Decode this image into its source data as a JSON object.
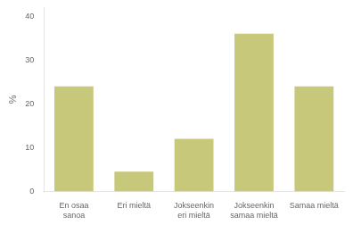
{
  "chart_data": {
    "type": "bar",
    "categories": [
      "En osaa\nsanoa",
      "Eri mieltä",
      "Jokseenkin\neri mieltä",
      "Jokseenkin\nsamaa mieltä",
      "Samaa mieltä"
    ],
    "values": [
      24.0,
      4.5,
      12.0,
      36.0,
      24.0
    ],
    "color": "#c8c87a",
    "ylabel": "%",
    "ylim": [
      0,
      42
    ],
    "yticks": [
      0,
      10,
      20,
      30,
      40
    ],
    "grid": false
  }
}
